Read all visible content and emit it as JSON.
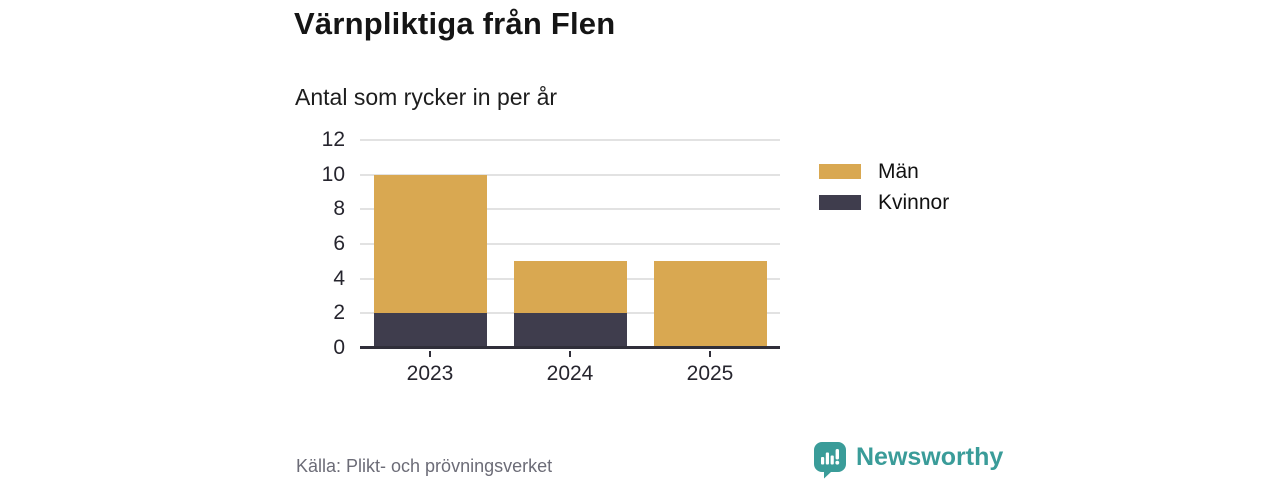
{
  "header": {
    "title": "Värnpliktiga från Flen",
    "subtitle": "Antal som rycker in per år"
  },
  "chart_data": {
    "type": "bar",
    "stacked": true,
    "title": "Värnpliktiga från Flen",
    "subtitle": "Antal som rycker in per år",
    "categories": [
      "2023",
      "2024",
      "2025"
    ],
    "series": [
      {
        "name": "Kvinnor",
        "color": "#3f3d4d",
        "values": [
          2,
          2,
          0
        ]
      },
      {
        "name": "Män",
        "color": "#d9a851",
        "values": [
          8,
          3,
          5
        ]
      }
    ],
    "totals": [
      10,
      5,
      5
    ],
    "xlabel": "",
    "ylabel": "",
    "ylim": [
      0,
      12
    ],
    "yticks": [
      0,
      2,
      4,
      6,
      8,
      10,
      12
    ],
    "grid": true,
    "legend": {
      "position": "right",
      "entries": [
        {
          "label": "Män",
          "color": "#d9a851"
        },
        {
          "label": "Kvinnor",
          "color": "#3f3d4d"
        }
      ]
    }
  },
  "footer": {
    "source": "Källa: Plikt- och prövningsverket",
    "brand_name": "Newsworthy",
    "brand_color": "#3a9c99"
  },
  "icons": {
    "brand_logo": "newsworthy-speech-bubble-bar-chart-icon"
  }
}
